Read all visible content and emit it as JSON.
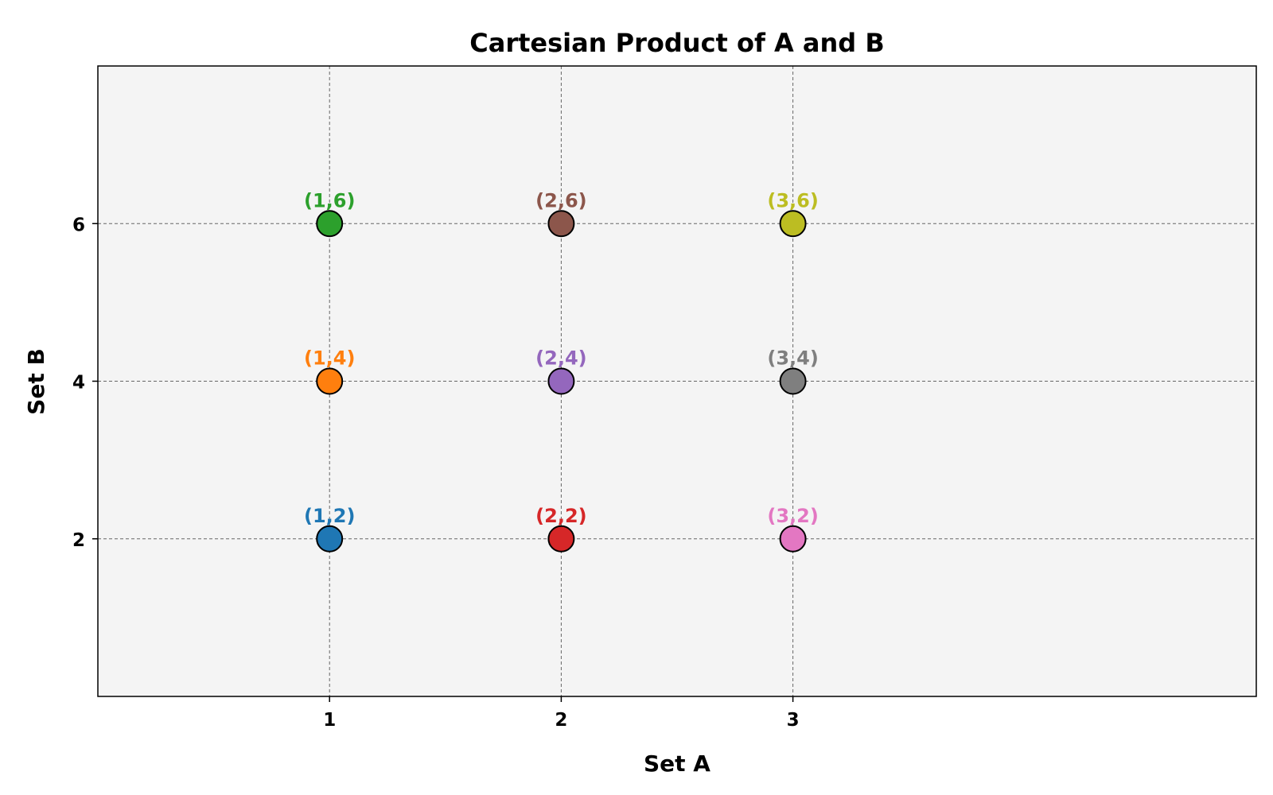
{
  "chart_data": {
    "type": "scatter",
    "title": "Cartesian Product of A and B",
    "xlabel": "Set A",
    "ylabel": "Set B",
    "xlim": [
      0,
      5
    ],
    "ylim": [
      0,
      8
    ],
    "x_ticks": [
      1,
      2,
      3
    ],
    "y_ticks": [
      2,
      4,
      6
    ],
    "grid": true,
    "plot_background": "#f4f4f4",
    "points": [
      {
        "x": 1,
        "y": 2,
        "label": "(1,2)",
        "color": "#1f77b4"
      },
      {
        "x": 1,
        "y": 4,
        "label": "(1,4)",
        "color": "#ff7f0e"
      },
      {
        "x": 1,
        "y": 6,
        "label": "(1,6)",
        "color": "#2ca02c"
      },
      {
        "x": 2,
        "y": 2,
        "label": "(2,2)",
        "color": "#d62728"
      },
      {
        "x": 2,
        "y": 4,
        "label": "(2,4)",
        "color": "#9467bd"
      },
      {
        "x": 2,
        "y": 6,
        "label": "(2,6)",
        "color": "#8c564b"
      },
      {
        "x": 3,
        "y": 2,
        "label": "(3,2)",
        "color": "#e377c2"
      },
      {
        "x": 3,
        "y": 4,
        "label": "(3,4)",
        "color": "#7f7f7f"
      },
      {
        "x": 3,
        "y": 6,
        "label": "(3,6)",
        "color": "#bcbd22"
      }
    ]
  }
}
